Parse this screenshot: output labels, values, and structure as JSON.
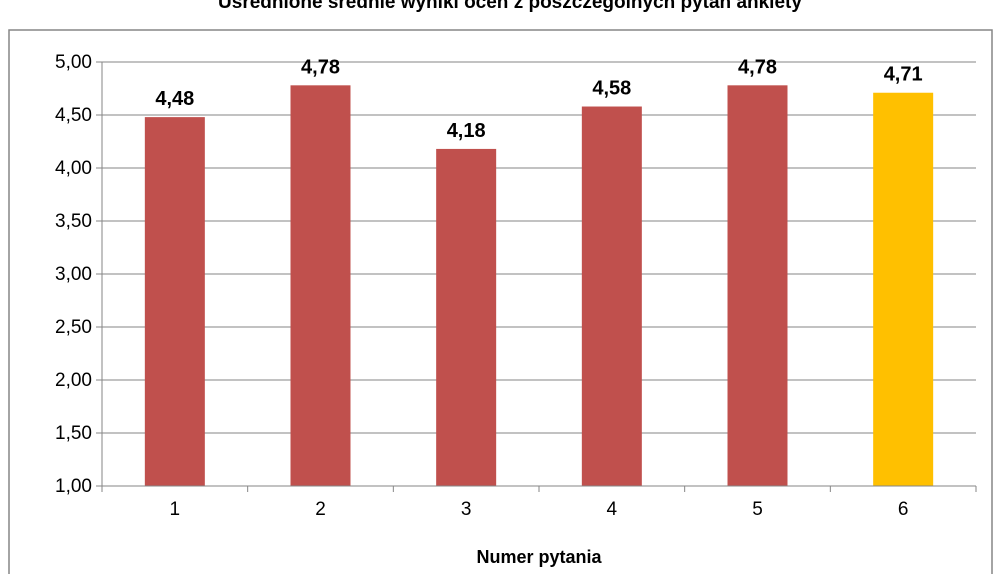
{
  "chart_data": {
    "type": "bar",
    "title": "Uśrednione średnie wyniki ocen z poszczególnych pytań ankiety",
    "xlabel": "Numer pytania",
    "ylabel": "",
    "categories": [
      "1",
      "2",
      "3",
      "4",
      "5",
      "6"
    ],
    "values": [
      4.48,
      4.78,
      4.18,
      4.58,
      4.78,
      4.71
    ],
    "value_labels": [
      "4,48",
      "4,78",
      "4,18",
      "4,58",
      "4,78",
      "4,71"
    ],
    "bar_colors": [
      "#c0504d",
      "#c0504d",
      "#c0504d",
      "#c0504d",
      "#c0504d",
      "#ffc000"
    ],
    "ylim": [
      1.0,
      5.0
    ],
    "yticks": [
      1.0,
      1.5,
      2.0,
      2.5,
      3.0,
      3.5,
      4.0,
      4.5,
      5.0
    ],
    "ytick_labels": [
      "1,00",
      "1,50",
      "2,00",
      "2,50",
      "3,00",
      "3,50",
      "4,00",
      "4,50",
      "5,00"
    ],
    "grid": true,
    "legend": "none"
  }
}
